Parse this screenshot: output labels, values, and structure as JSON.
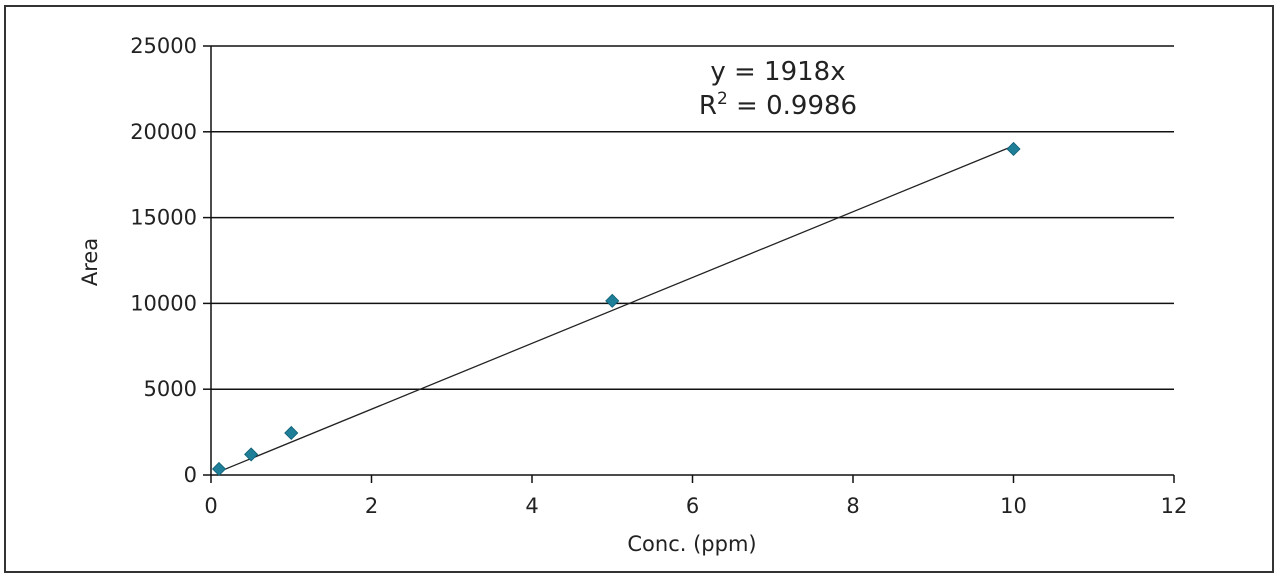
{
  "chart_data": {
    "type": "scatter",
    "title": "",
    "xlabel": "Conc. (ppm)",
    "ylabel": "Area",
    "xlim": [
      0,
      12
    ],
    "ylim": [
      0,
      25000
    ],
    "xticks": [
      0,
      2,
      4,
      6,
      8,
      10,
      12
    ],
    "yticks": [
      0,
      5000,
      10000,
      15000,
      20000,
      25000
    ],
    "grid": "horizontal",
    "series": [
      {
        "points": [
          {
            "x": 0.1,
            "y": 350
          },
          {
            "x": 0.5,
            "y": 1200
          },
          {
            "x": 1.0,
            "y": 2450
          },
          {
            "x": 5.0,
            "y": 10150
          },
          {
            "x": 10.0,
            "y": 19000
          }
        ],
        "marker": "diamond",
        "color": "#1f7f99"
      }
    ],
    "trendline": {
      "slope": 1918,
      "x_range": [
        0.1,
        10
      ],
      "color": "#222222",
      "equation_text": "y = 1918x",
      "r2_prefix": "R",
      "r2_sup": "2",
      "r2_value_text": " = 0.9986"
    }
  }
}
